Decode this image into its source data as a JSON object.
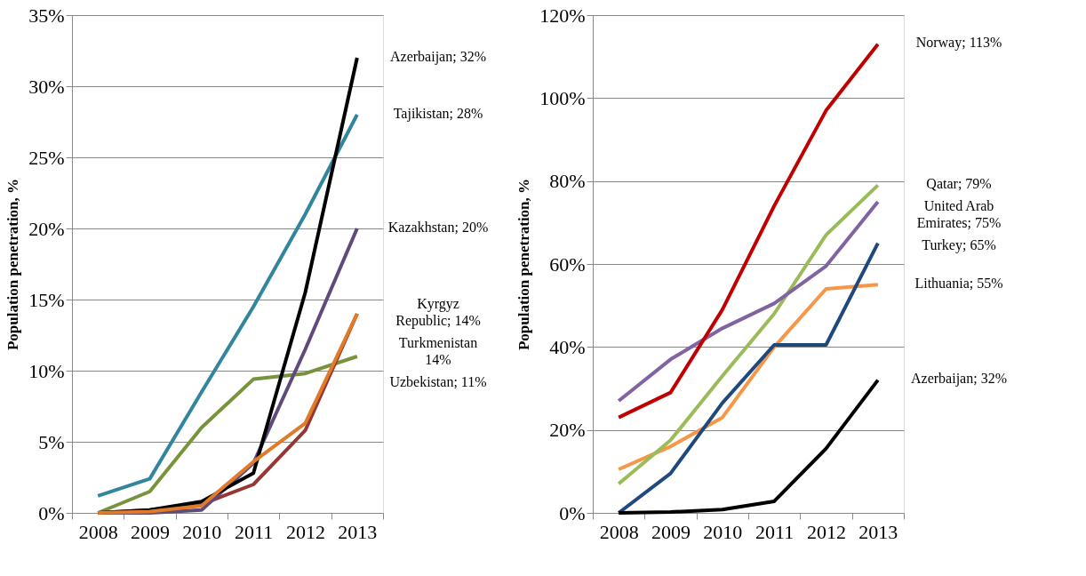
{
  "chart_data": [
    {
      "type": "line",
      "ylabel": "Population penetration, %",
      "categories": [
        "2008",
        "2009",
        "2010",
        "2011",
        "2012",
        "2013"
      ],
      "ylim": [
        0,
        35
      ],
      "yticks": [
        {
          "value": 0,
          "label": "0%"
        },
        {
          "value": 5,
          "label": "5%"
        },
        {
          "value": 10,
          "label": "10%"
        },
        {
          "value": 15,
          "label": "15%"
        },
        {
          "value": 20,
          "label": "20%"
        },
        {
          "value": 25,
          "label": "25%"
        },
        {
          "value": 30,
          "label": "30%"
        },
        {
          "value": 35,
          "label": "35%"
        }
      ],
      "grid": "y",
      "legend": false,
      "marker": "none",
      "line_style": "solid",
      "series": [
        {
          "color": "#31859c",
          "values": [
            1.2,
            2.4,
            8.5,
            14.5,
            21,
            28
          ]
        },
        {
          "color": "#77933c",
          "values": [
            0,
            1.5,
            6,
            9.4,
            9.8,
            11
          ]
        },
        {
          "color": "#953735",
          "values": [
            0,
            0.2,
            0.6,
            2.0,
            5.8,
            14
          ]
        },
        {
          "color": "#604a7b",
          "values": [
            0,
            0,
            0.2,
            3.5,
            11.5,
            20
          ]
        },
        {
          "color": "#000000",
          "values": [
            0,
            0.2,
            0.8,
            2.8,
            15.5,
            32
          ]
        },
        {
          "color": "#e07b2a",
          "values": [
            0,
            0.1,
            0.5,
            3.6,
            6.3,
            14
          ]
        }
      ],
      "annotations": [
        "Tajikistan; 28%",
        "Uzbekistan; 11%",
        "Kyrgyz Republic; 14%",
        "Kazakhstan; 20%",
        "Azerbaijan; 32%",
        "Turkmenistan 14%"
      ]
    },
    {
      "type": "line",
      "ylabel": "Population penetration, %",
      "categories": [
        "2008",
        "2009",
        "2010",
        "2011",
        "2012",
        "2013"
      ],
      "ylim": [
        0,
        120
      ],
      "yticks": [
        {
          "value": 0,
          "label": "0%"
        },
        {
          "value": 20,
          "label": "20%"
        },
        {
          "value": 40,
          "label": "40%"
        },
        {
          "value": 60,
          "label": "60%"
        },
        {
          "value": 80,
          "label": "80%"
        },
        {
          "value": 100,
          "label": "100%"
        },
        {
          "value": 120,
          "label": "120%"
        }
      ],
      "grid": "y",
      "legend": false,
      "marker": "none",
      "line_style": "solid",
      "series": [
        {
          "color": "#f79646",
          "values": [
            10.5,
            16,
            23,
            40,
            54,
            55
          ]
        },
        {
          "color": "#1f497d",
          "values": [
            0,
            9.5,
            26.5,
            40.5,
            40.5,
            65
          ]
        },
        {
          "color": "#9bbb59",
          "values": [
            7,
            17.5,
            33,
            48,
            67,
            79
          ]
        },
        {
          "color": "#8064a2",
          "values": [
            27,
            37,
            44.5,
            50.5,
            59.5,
            75
          ]
        },
        {
          "color": "#c00000",
          "values": [
            23,
            29,
            49,
            74,
            97,
            113
          ]
        },
        {
          "color": "#000000",
          "values": [
            0,
            0.2,
            0.8,
            2.8,
            15.5,
            32
          ]
        }
      ],
      "annotations": [
        "Lithuania; 55%",
        "Turkey; 65%",
        "Qatar; 79%",
        "United Arab Emirates; 75%",
        "Norway; 113%",
        "Azerbaijan; 32%"
      ]
    }
  ]
}
